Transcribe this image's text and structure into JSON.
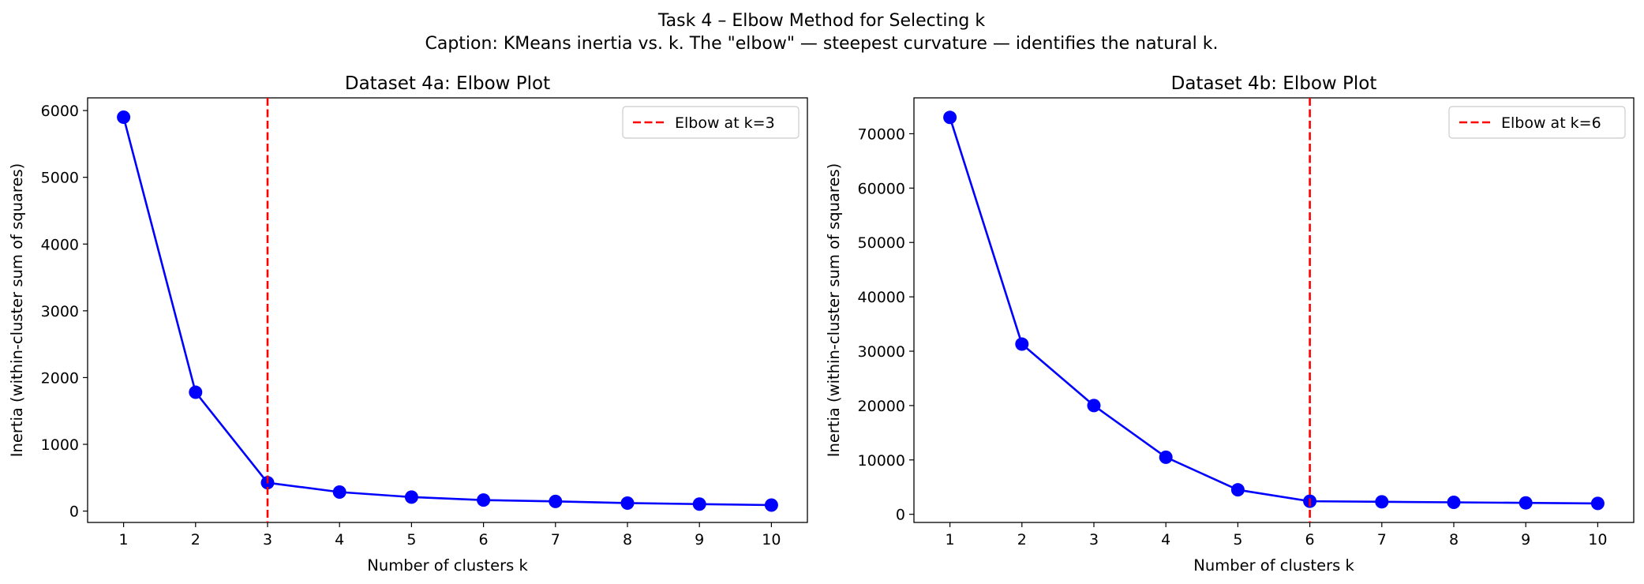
{
  "figure": {
    "title": "Task 4 – Elbow Method for Selecting k",
    "caption": "Caption: KMeans inertia vs. k. The \"elbow\" — steepest curvature — identifies the natural k."
  },
  "colors": {
    "line": "#0000ff",
    "elbow": "#ff0000"
  },
  "chart_data": [
    {
      "type": "line",
      "title": "Dataset 4a: Elbow Plot",
      "xlabel": "Number of clusters k",
      "ylabel": "Inertia (within-cluster sum of squares)",
      "x": [
        1,
        2,
        3,
        4,
        5,
        6,
        7,
        8,
        9,
        10
      ],
      "series": [
        {
          "values": [
            5900,
            1780,
            425,
            285,
            210,
            165,
            145,
            120,
            105,
            90
          ]
        }
      ],
      "xlim": [
        0.5,
        10.5
      ],
      "ylim": [
        -170,
        6190
      ],
      "xticks": [
        1,
        2,
        3,
        4,
        5,
        6,
        7,
        8,
        9,
        10
      ],
      "yticks": [
        0,
        1000,
        2000,
        3000,
        4000,
        5000,
        6000
      ],
      "elbow": {
        "k": 3,
        "label": "Elbow at k=3"
      },
      "legend": "top-right",
      "grid": false
    },
    {
      "type": "line",
      "title": "Dataset 4b: Elbow Plot",
      "xlabel": "Number of clusters k",
      "ylabel": "Inertia (within-cluster sum of squares)",
      "x": [
        1,
        2,
        3,
        4,
        5,
        6,
        7,
        8,
        9,
        10
      ],
      "series": [
        {
          "values": [
            73000,
            31300,
            20000,
            10500,
            4500,
            2400,
            2300,
            2200,
            2100,
            2000
          ]
        }
      ],
      "xlim": [
        0.5,
        10.5
      ],
      "ylim": [
        -1500,
        76600
      ],
      "xticks": [
        1,
        2,
        3,
        4,
        5,
        6,
        7,
        8,
        9,
        10
      ],
      "yticks": [
        0,
        10000,
        20000,
        30000,
        40000,
        50000,
        60000,
        70000
      ],
      "elbow": {
        "k": 6,
        "label": "Elbow at k=6"
      },
      "legend": "top-right",
      "grid": false
    }
  ]
}
